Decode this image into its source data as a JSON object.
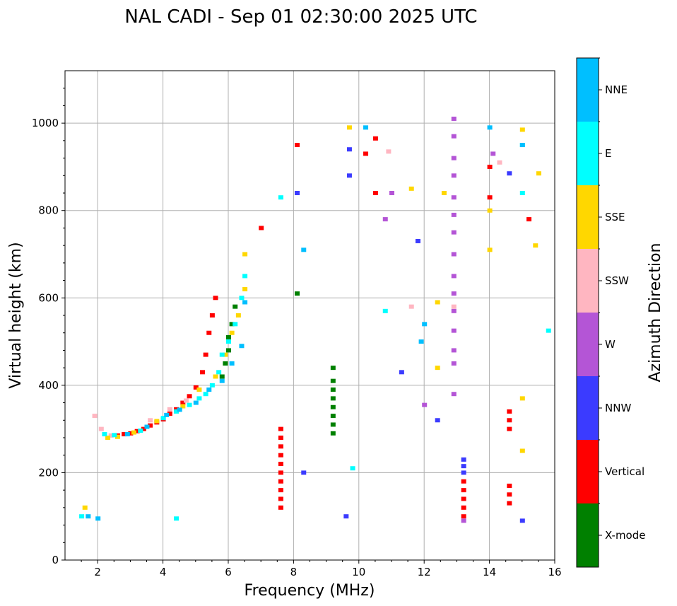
{
  "chart_data": {
    "type": "scatter",
    "title": "NAL CADI - Sep 01 02:30:00 2025 UTC",
    "xlabel": "Frequency (MHz)",
    "ylabel": "Virtual height (km)",
    "xlim": [
      1,
      16
    ],
    "ylim": [
      0,
      1120
    ],
    "xticks": [
      2,
      4,
      6,
      8,
      10,
      12,
      14,
      16
    ],
    "yticks": [
      0,
      200,
      400,
      600,
      800,
      1000
    ],
    "grid": true,
    "colorbar": {
      "label": "Azimuth Direction",
      "categories": [
        {
          "name": "X-mode",
          "color": "#008000"
        },
        {
          "name": "Vertical",
          "color": "#ff0000"
        },
        {
          "name": "NNW",
          "color": "#3b3bff"
        },
        {
          "name": "W",
          "color": "#b455d6"
        },
        {
          "name": "SSW",
          "color": "#ffb6c1"
        },
        {
          "name": "SSE",
          "color": "#ffd700"
        },
        {
          "name": "E",
          "color": "#00ffff"
        },
        {
          "name": "NNE",
          "color": "#00bfff"
        }
      ]
    },
    "series": [
      {
        "name": "Vertical",
        "points": [
          [
            2.6,
            285
          ],
          [
            2.8,
            288
          ],
          [
            3.0,
            290
          ],
          [
            3.2,
            295
          ],
          [
            3.4,
            300
          ],
          [
            3.6,
            308
          ],
          [
            3.8,
            315
          ],
          [
            4.0,
            322
          ],
          [
            4.2,
            335
          ],
          [
            4.4,
            345
          ],
          [
            4.6,
            360
          ],
          [
            4.8,
            375
          ],
          [
            5.0,
            395
          ],
          [
            5.2,
            430
          ],
          [
            5.3,
            470
          ],
          [
            5.4,
            520
          ],
          [
            5.5,
            560
          ],
          [
            5.6,
            600
          ],
          [
            7.6,
            120
          ],
          [
            7.6,
            140
          ],
          [
            7.6,
            160
          ],
          [
            7.6,
            180
          ],
          [
            7.6,
            200
          ],
          [
            7.6,
            220
          ],
          [
            7.6,
            240
          ],
          [
            7.6,
            260
          ],
          [
            7.6,
            280
          ],
          [
            7.6,
            300
          ],
          [
            13.2,
            100
          ],
          [
            13.2,
            120
          ],
          [
            13.2,
            140
          ],
          [
            13.2,
            160
          ],
          [
            13.2,
            180
          ],
          [
            14.6,
            130
          ],
          [
            14.6,
            150
          ],
          [
            14.6,
            170
          ],
          [
            14.6,
            300
          ],
          [
            14.6,
            320
          ],
          [
            14.6,
            340
          ],
          [
            10.5,
            840
          ],
          [
            10.2,
            930
          ],
          [
            14.0,
            830
          ],
          [
            14.0,
            900
          ],
          [
            15.2,
            780
          ],
          [
            7.0,
            760
          ],
          [
            8.1,
            950
          ],
          [
            10.5,
            965
          ]
        ]
      },
      {
        "name": "X-mode",
        "points": [
          [
            9.2,
            290
          ],
          [
            9.2,
            310
          ],
          [
            9.2,
            330
          ],
          [
            9.2,
            350
          ],
          [
            9.2,
            370
          ],
          [
            9.2,
            390
          ],
          [
            9.2,
            410
          ],
          [
            9.2,
            440
          ],
          [
            5.8,
            420
          ],
          [
            5.9,
            450
          ],
          [
            6.0,
            480
          ],
          [
            6.0,
            510
          ],
          [
            6.1,
            540
          ],
          [
            6.2,
            580
          ],
          [
            8.1,
            610
          ]
        ]
      },
      {
        "name": "NNW",
        "points": [
          [
            13.2,
            200
          ],
          [
            13.2,
            215
          ],
          [
            13.2,
            230
          ],
          [
            9.7,
            880
          ],
          [
            9.7,
            940
          ],
          [
            12.4,
            320
          ],
          [
            11.3,
            430
          ],
          [
            11.8,
            730
          ],
          [
            8.3,
            200
          ],
          [
            9.6,
            100
          ],
          [
            14.6,
            885
          ],
          [
            15.0,
            90
          ],
          [
            8.1,
            840
          ]
        ]
      },
      {
        "name": "W",
        "points": [
          [
            12.9,
            380
          ],
          [
            12.9,
            450
          ],
          [
            12.9,
            480
          ],
          [
            12.9,
            525
          ],
          [
            12.9,
            570
          ],
          [
            12.9,
            610
          ],
          [
            12.9,
            650
          ],
          [
            12.9,
            700
          ],
          [
            12.9,
            750
          ],
          [
            12.9,
            790
          ],
          [
            12.9,
            830
          ],
          [
            12.9,
            880
          ],
          [
            12.9,
            920
          ],
          [
            12.9,
            970
          ],
          [
            12.9,
            1010
          ],
          [
            13.2,
            90
          ],
          [
            12.0,
            355
          ],
          [
            14.1,
            930
          ],
          [
            11.0,
            840
          ],
          [
            10.8,
            780
          ]
        ]
      },
      {
        "name": "SSW",
        "points": [
          [
            1.9,
            330
          ],
          [
            2.1,
            300
          ],
          [
            2.4,
            285
          ],
          [
            3.6,
            320
          ],
          [
            4.2,
            345
          ],
          [
            4.7,
            365
          ],
          [
            12.9,
            580
          ],
          [
            10.9,
            935
          ],
          [
            11.6,
            580
          ],
          [
            14.3,
            910
          ]
        ]
      },
      {
        "name": "SSE",
        "points": [
          [
            2.3,
            280
          ],
          [
            2.6,
            282
          ],
          [
            3.1,
            292
          ],
          [
            3.8,
            318
          ],
          [
            4.6,
            352
          ],
          [
            5.1,
            390
          ],
          [
            5.6,
            420
          ],
          [
            5.9,
            470
          ],
          [
            6.1,
            520
          ],
          [
            6.3,
            560
          ],
          [
            6.5,
            620
          ],
          [
            6.5,
            700
          ],
          [
            1.6,
            120
          ],
          [
            12.4,
            440
          ],
          [
            12.4,
            590
          ],
          [
            12.6,
            840
          ],
          [
            14.0,
            710
          ],
          [
            14.0,
            800
          ],
          [
            15.0,
            370
          ],
          [
            15.0,
            250
          ],
          [
            15.0,
            985
          ],
          [
            15.5,
            885
          ],
          [
            15.4,
            720
          ],
          [
            9.7,
            990
          ],
          [
            11.6,
            850
          ]
        ]
      },
      {
        "name": "E",
        "points": [
          [
            2.2,
            288
          ],
          [
            2.5,
            286
          ],
          [
            3.3,
            296
          ],
          [
            4.0,
            325
          ],
          [
            4.4,
            340
          ],
          [
            4.8,
            355
          ],
          [
            5.1,
            370
          ],
          [
            5.3,
            380
          ],
          [
            5.5,
            400
          ],
          [
            5.7,
            430
          ],
          [
            5.8,
            470
          ],
          [
            6.0,
            500
          ],
          [
            6.2,
            540
          ],
          [
            6.4,
            600
          ],
          [
            6.5,
            650
          ],
          [
            4.4,
            95
          ],
          [
            1.5,
            100
          ],
          [
            7.6,
            830
          ],
          [
            9.8,
            210
          ],
          [
            10.8,
            570
          ],
          [
            15.0,
            840
          ],
          [
            15.0,
            950
          ],
          [
            15.8,
            525
          ]
        ]
      },
      {
        "name": "NNE",
        "points": [
          [
            1.7,
            100
          ],
          [
            2.0,
            95
          ],
          [
            2.9,
            288
          ],
          [
            3.5,
            305
          ],
          [
            4.1,
            332
          ],
          [
            4.5,
            344
          ],
          [
            5.0,
            360
          ],
          [
            5.4,
            390
          ],
          [
            5.8,
            410
          ],
          [
            6.1,
            450
          ],
          [
            6.4,
            490
          ],
          [
            6.5,
            590
          ],
          [
            10.2,
            990
          ],
          [
            11.9,
            500
          ],
          [
            12.0,
            540
          ],
          [
            14.0,
            990
          ],
          [
            15.0,
            950
          ],
          [
            8.3,
            710
          ]
        ]
      }
    ]
  }
}
